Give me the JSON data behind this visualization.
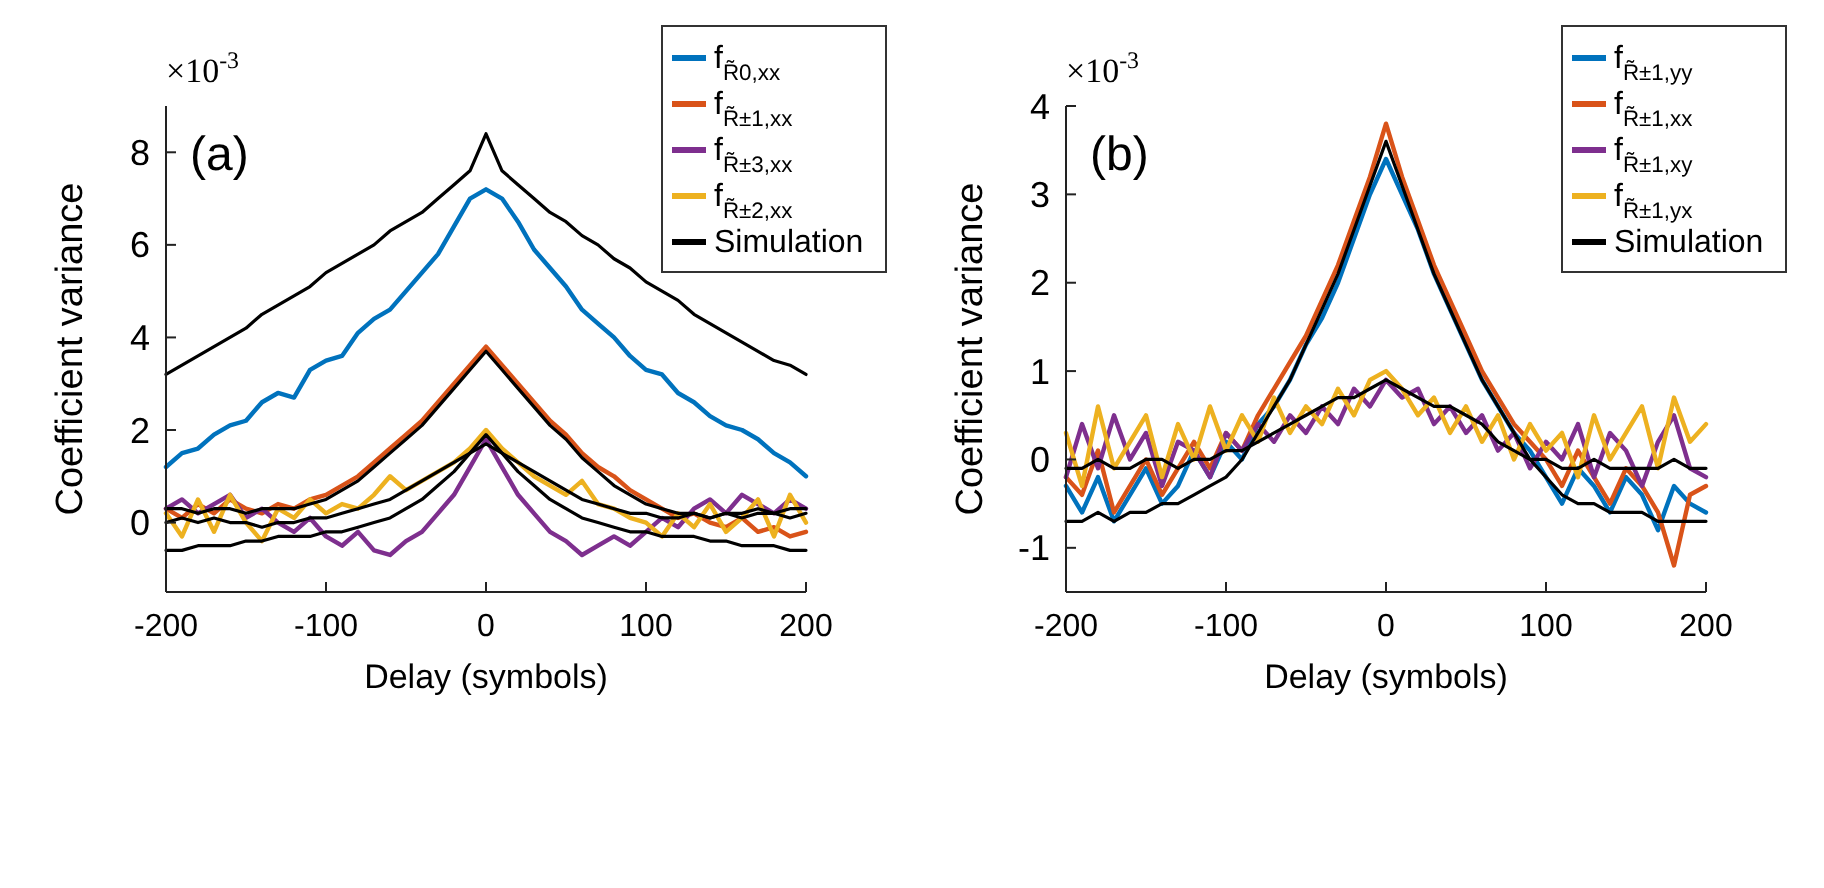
{
  "chart_data": [
    {
      "type": "line",
      "xlabel": "Delay (symbols)",
      "ylabel": "Coefficient variance",
      "annotations": [
        "×10$^{-3}$",
        "(a)"
      ],
      "xlim": [
        -200,
        200
      ],
      "xticks": [
        -200,
        -100,
        0,
        100,
        200
      ],
      "ylim": [
        -1.5,
        9
      ],
      "yticks": [
        0,
        2,
        4,
        6,
        8
      ],
      "grid": false,
      "legend": "top right",
      "marker": "none",
      "line_style": "solid",
      "x": [
        -200,
        -190,
        -180,
        -170,
        -160,
        -150,
        -140,
        -130,
        -120,
        -110,
        -100,
        -90,
        -80,
        -70,
        -60,
        -50,
        -40,
        -30,
        -20,
        -10,
        0,
        10,
        20,
        30,
        40,
        50,
        60,
        70,
        80,
        90,
        100,
        110,
        120,
        130,
        140,
        150,
        160,
        170,
        180,
        190,
        200
      ],
      "series": [
        {
          "name": "f$_{R̃0,xx}$",
          "color": "#0072bd",
          "values": [
            1.2,
            1.5,
            1.6,
            1.9,
            2.1,
            2.2,
            2.6,
            2.8,
            2.7,
            3.3,
            3.5,
            3.6,
            4.1,
            4.4,
            4.6,
            5.0,
            5.4,
            5.8,
            6.4,
            7.0,
            7.2,
            7.0,
            6.5,
            5.9,
            5.5,
            5.1,
            4.6,
            4.3,
            4.0,
            3.6,
            3.3,
            3.2,
            2.8,
            2.6,
            2.3,
            2.1,
            2.0,
            1.8,
            1.5,
            1.3,
            1.0
          ]
        },
        {
          "name": "f$_{R̃±1,xx}$",
          "color": "#d95319",
          "values": [
            0.3,
            0.1,
            0.4,
            0.2,
            0.5,
            0.3,
            0.2,
            0.4,
            0.3,
            0.5,
            0.6,
            0.8,
            1.0,
            1.3,
            1.6,
            1.9,
            2.2,
            2.6,
            3.0,
            3.4,
            3.8,
            3.4,
            3.0,
            2.6,
            2.2,
            1.9,
            1.5,
            1.2,
            1.0,
            0.7,
            0.5,
            0.3,
            0.1,
            0.2,
            0.0,
            -0.1,
            0.1,
            -0.2,
            -0.1,
            -0.3,
            -0.2
          ]
        },
        {
          "name": "f$_{R̃±3,xx}$",
          "color": "#7e2f8e",
          "values": [
            0.3,
            0.5,
            0.2,
            0.4,
            0.6,
            0.1,
            0.3,
            0.0,
            -0.2,
            0.1,
            -0.3,
            -0.5,
            -0.2,
            -0.6,
            -0.7,
            -0.4,
            -0.2,
            0.2,
            0.6,
            1.2,
            1.8,
            1.2,
            0.6,
            0.2,
            -0.2,
            -0.4,
            -0.7,
            -0.5,
            -0.3,
            -0.5,
            -0.2,
            0.1,
            -0.1,
            0.3,
            0.5,
            0.2,
            0.6,
            0.4,
            0.2,
            0.5,
            0.3
          ]
        },
        {
          "name": "f$_{R̃±2,xx}$",
          "color": "#edb120",
          "values": [
            0.2,
            -0.3,
            0.5,
            -0.2,
            0.6,
            0.0,
            -0.4,
            0.3,
            0.1,
            0.5,
            0.2,
            0.4,
            0.3,
            0.6,
            1.0,
            0.7,
            0.9,
            1.1,
            1.3,
            1.6,
            2.0,
            1.6,
            1.3,
            1.0,
            0.8,
            0.6,
            0.9,
            0.4,
            0.3,
            0.1,
            0.0,
            -0.3,
            0.2,
            -0.1,
            0.4,
            -0.2,
            0.1,
            0.5,
            -0.3,
            0.6,
            0.0
          ]
        },
        {
          "name": "Simulation",
          "color": "#000000",
          "values": [
            3.2,
            3.4,
            3.6,
            3.8,
            4.0,
            4.2,
            4.5,
            4.7,
            4.9,
            5.1,
            5.4,
            5.6,
            5.8,
            6.0,
            6.3,
            6.5,
            6.7,
            7.0,
            7.3,
            7.6,
            8.4,
            7.6,
            7.3,
            7.0,
            6.7,
            6.5,
            6.2,
            6.0,
            5.7,
            5.5,
            5.2,
            5.0,
            4.8,
            4.5,
            4.3,
            4.1,
            3.9,
            3.7,
            3.5,
            3.4,
            3.2
          ]
        },
        {
          "color": "#000000",
          "values": [
            0.3,
            0.3,
            0.2,
            0.3,
            0.3,
            0.2,
            0.3,
            0.3,
            0.3,
            0.4,
            0.5,
            0.7,
            0.9,
            1.2,
            1.5,
            1.8,
            2.1,
            2.5,
            2.9,
            3.3,
            3.7,
            3.3,
            2.9,
            2.5,
            2.1,
            1.8,
            1.4,
            1.1,
            0.8,
            0.6,
            0.4,
            0.3,
            0.2,
            0.2,
            0.1,
            0.2,
            0.1,
            0.2,
            0.2,
            0.1,
            0.2
          ]
        },
        {
          "color": "#000000",
          "values": [
            -0.6,
            -0.6,
            -0.5,
            -0.5,
            -0.5,
            -0.4,
            -0.4,
            -0.3,
            -0.3,
            -0.3,
            -0.2,
            -0.2,
            -0.1,
            0.0,
            0.1,
            0.3,
            0.5,
            0.8,
            1.1,
            1.5,
            1.9,
            1.5,
            1.1,
            0.8,
            0.5,
            0.3,
            0.1,
            0.0,
            -0.1,
            -0.2,
            -0.2,
            -0.3,
            -0.3,
            -0.3,
            -0.4,
            -0.4,
            -0.5,
            -0.5,
            -0.5,
            -0.6,
            -0.6
          ]
        },
        {
          "color": "#000000",
          "values": [
            0.0,
            0.1,
            0.0,
            0.1,
            0.0,
            0.0,
            -0.1,
            0.0,
            0.0,
            0.1,
            0.1,
            0.2,
            0.3,
            0.4,
            0.5,
            0.7,
            0.9,
            1.1,
            1.3,
            1.5,
            1.7,
            1.5,
            1.3,
            1.1,
            0.9,
            0.7,
            0.5,
            0.4,
            0.3,
            0.2,
            0.2,
            0.1,
            0.1,
            0.2,
            0.1,
            0.2,
            0.2,
            0.3,
            0.2,
            0.3,
            0.3
          ]
        }
      ]
    },
    {
      "type": "line",
      "xlabel": "Delay (symbols)",
      "ylabel": "Coefficient variance",
      "annotations": [
        "×10$^{-3}$",
        "(b)"
      ],
      "xlim": [
        -200,
        200
      ],
      "xticks": [
        -200,
        -100,
        0,
        100,
        200
      ],
      "ylim": [
        -1.5,
        4
      ],
      "yticks": [
        -1,
        0,
        1,
        2,
        3,
        4
      ],
      "grid": false,
      "legend": "top right",
      "marker": "none",
      "line_style": "solid",
      "x": [
        -200,
        -190,
        -180,
        -170,
        -160,
        -150,
        -140,
        -130,
        -120,
        -110,
        -100,
        -90,
        -80,
        -70,
        -60,
        -50,
        -40,
        -30,
        -20,
        -10,
        0,
        10,
        20,
        30,
        40,
        50,
        60,
        70,
        80,
        90,
        100,
        110,
        120,
        130,
        140,
        150,
        160,
        170,
        180,
        190,
        200
      ],
      "series": [
        {
          "name": "f$_{R̃±1,yy}$",
          "color": "#0072bd",
          "values": [
            -0.3,
            -0.6,
            -0.2,
            -0.7,
            -0.4,
            -0.1,
            -0.5,
            -0.3,
            0.1,
            -0.2,
            0.2,
            0.0,
            0.4,
            0.6,
            0.9,
            1.3,
            1.6,
            2.0,
            2.5,
            3.0,
            3.4,
            3.0,
            2.6,
            2.1,
            1.7,
            1.3,
            0.9,
            0.6,
            0.3,
            0.1,
            -0.2,
            -0.5,
            -0.1,
            -0.3,
            -0.6,
            -0.2,
            -0.4,
            -0.8,
            -0.3,
            -0.5,
            -0.6
          ]
        },
        {
          "name": "f$_{R̃±1,xx}$",
          "color": "#d95319",
          "values": [
            -0.2,
            -0.4,
            0.1,
            -0.6,
            -0.3,
            0.0,
            -0.4,
            -0.1,
            0.2,
            -0.1,
            0.3,
            0.1,
            0.5,
            0.8,
            1.1,
            1.4,
            1.8,
            2.2,
            2.7,
            3.2,
            3.8,
            3.2,
            2.7,
            2.2,
            1.8,
            1.4,
            1.0,
            0.7,
            0.4,
            0.2,
            0.0,
            -0.3,
            0.1,
            -0.2,
            -0.5,
            -0.1,
            -0.3,
            -0.6,
            -1.2,
            -0.4,
            -0.3
          ]
        },
        {
          "name": "f$_{R̃±1,xy}$",
          "color": "#7e2f8e",
          "values": [
            -0.2,
            0.4,
            -0.1,
            0.5,
            0.0,
            0.3,
            -0.3,
            0.2,
            0.1,
            -0.2,
            0.3,
            0.1,
            0.4,
            0.2,
            0.5,
            0.3,
            0.6,
            0.4,
            0.8,
            0.6,
            0.9,
            0.7,
            0.8,
            0.4,
            0.6,
            0.3,
            0.5,
            0.1,
            0.3,
            -0.1,
            0.2,
            0.0,
            0.4,
            -0.2,
            0.3,
            0.1,
            -0.3,
            0.2,
            0.5,
            -0.1,
            -0.2
          ]
        },
        {
          "name": "f$_{R̃±1,yx}$",
          "color": "#edb120",
          "values": [
            0.3,
            -0.3,
            0.6,
            -0.1,
            0.2,
            0.5,
            -0.2,
            0.4,
            0.0,
            0.6,
            0.1,
            0.5,
            0.2,
            0.7,
            0.3,
            0.6,
            0.4,
            0.8,
            0.5,
            0.9,
            1.0,
            0.8,
            0.5,
            0.7,
            0.3,
            0.6,
            0.2,
            0.5,
            0.0,
            0.4,
            0.1,
            0.3,
            -0.2,
            0.5,
            0.0,
            0.3,
            0.6,
            -0.1,
            0.7,
            0.2,
            0.4
          ]
        },
        {
          "name": "Simulation",
          "color": "#000000",
          "values": [
            -0.7,
            -0.7,
            -0.6,
            -0.7,
            -0.6,
            -0.6,
            -0.5,
            -0.5,
            -0.4,
            -0.3,
            -0.2,
            0.0,
            0.3,
            0.6,
            0.9,
            1.3,
            1.7,
            2.1,
            2.6,
            3.1,
            3.6,
            3.1,
            2.6,
            2.1,
            1.7,
            1.3,
            0.9,
            0.6,
            0.3,
            0.0,
            -0.2,
            -0.4,
            -0.5,
            -0.5,
            -0.6,
            -0.6,
            -0.6,
            -0.7,
            -0.7,
            -0.7,
            -0.7
          ]
        },
        {
          "color": "#000000",
          "values": [
            -0.1,
            -0.1,
            0.0,
            -0.1,
            -0.1,
            0.0,
            0.0,
            -0.1,
            0.0,
            0.0,
            0.1,
            0.1,
            0.2,
            0.3,
            0.4,
            0.5,
            0.6,
            0.7,
            0.7,
            0.8,
            0.9,
            0.8,
            0.7,
            0.6,
            0.6,
            0.5,
            0.4,
            0.2,
            0.1,
            0.0,
            0.0,
            -0.1,
            -0.1,
            0.0,
            -0.1,
            -0.1,
            -0.1,
            -0.1,
            0.0,
            -0.1,
            -0.1
          ]
        }
      ]
    }
  ]
}
